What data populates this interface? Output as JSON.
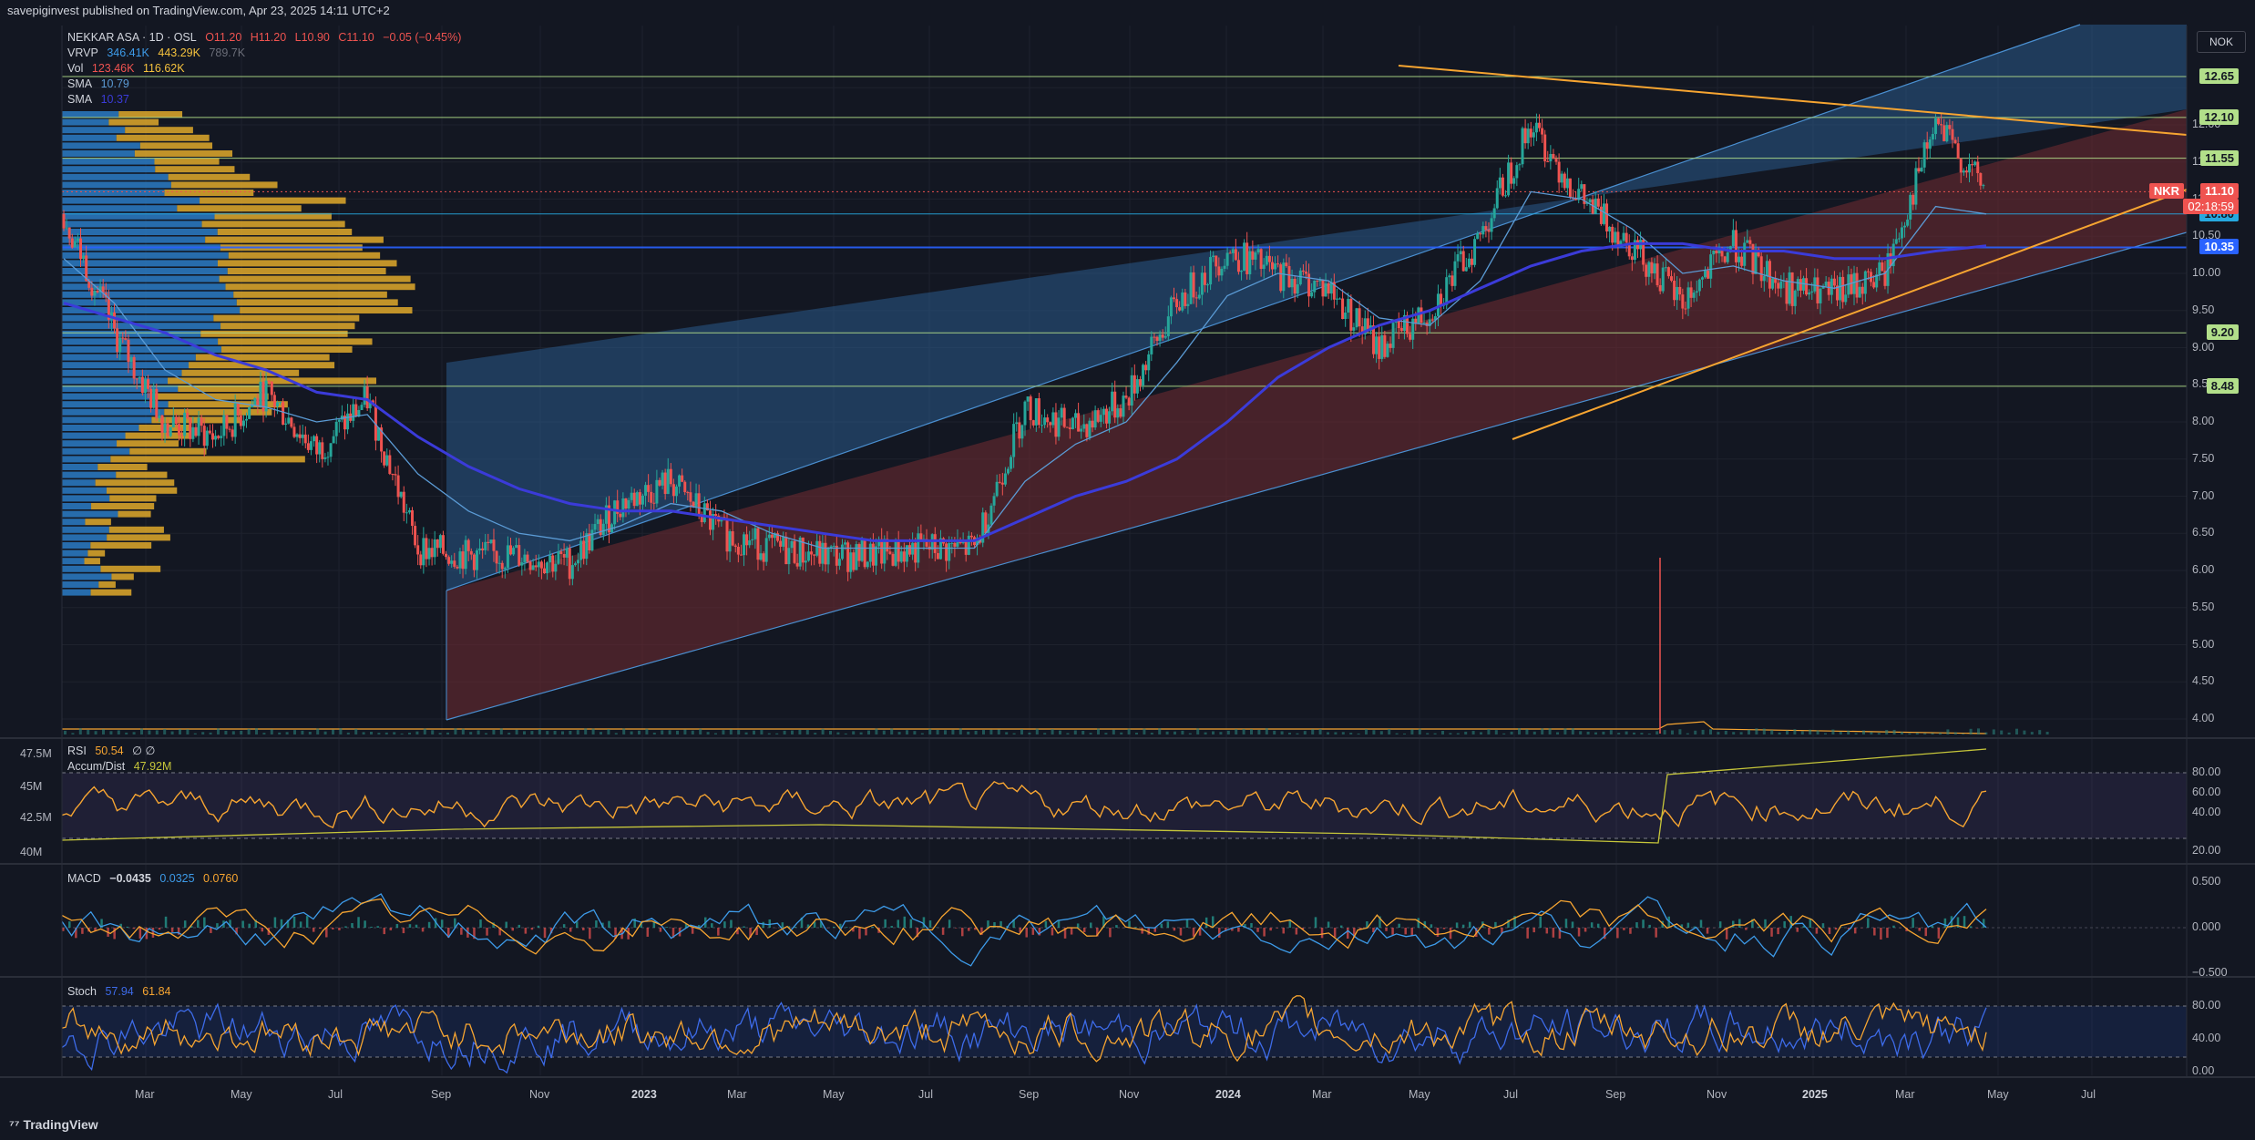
{
  "header": {
    "published": "savepiginvest published on TradingView.com, Apr 23, 2025 14:11 UTC+2"
  },
  "legend": {
    "symbol": "NEKKAR ASA · 1D · OSL",
    "ohlc": {
      "o": "O11.20",
      "h": "H11.20",
      "l": "L10.90",
      "c": "C11.10",
      "chg": "−0.05 (−0.45%)"
    },
    "vrvp": {
      "label": "VRVP",
      "v1": "346.41K",
      "v2": "443.29K",
      "v3": "789.7K"
    },
    "vol": {
      "label": "Vol",
      "v1": "123.46K",
      "v2": "116.62K"
    },
    "sma1": {
      "label": "SMA",
      "v": "10.79"
    },
    "sma2": {
      "label": "SMA",
      "v": "10.37"
    }
  },
  "currency_button": "NOK",
  "price_ticks": [
    "12.00",
    "11.50",
    "11.00",
    "10.50",
    "10.00",
    "9.50",
    "9.00",
    "8.50",
    "8.00",
    "7.50",
    "7.00",
    "6.50",
    "6.00",
    "5.50",
    "5.00",
    "4.50",
    "4.00"
  ],
  "level_labels": [
    {
      "text": "12.65",
      "value": 12.65,
      "color": "#b2df8a"
    },
    {
      "text": "12.10",
      "value": 12.1,
      "color": "#b2df8a"
    },
    {
      "text": "11.55",
      "value": 11.55,
      "color": "#b2df8a"
    },
    {
      "text": "10.80",
      "value": 10.8,
      "color": "#26a9e0"
    },
    {
      "text": "10.35",
      "value": 10.35,
      "color": "#2962ff"
    },
    {
      "text": "9.20",
      "value": 9.2,
      "color": "#b2df8a"
    },
    {
      "text": "8.48",
      "value": 8.48,
      "color": "#b2df8a"
    }
  ],
  "price_tag": {
    "symbol": "NKR",
    "price": "11.10",
    "countdown": "02:18:59",
    "value": 11.1
  },
  "rsi": {
    "label": "RSI",
    "v": "50.54",
    "extra": "∅ ∅",
    "accum_label": "Accum/Dist",
    "accum_v": "47.92M",
    "ticks": [
      "80.00",
      "60.00",
      "40.00",
      "20.00"
    ],
    "left_ticks": [
      "47.5M",
      "45M",
      "42.5M",
      "40M"
    ]
  },
  "macd": {
    "label": "MACD",
    "v1": "−0.0435",
    "v2": "0.0325",
    "v3": "0.0760",
    "ticks": [
      "0.500",
      "0.000",
      "−0.500"
    ]
  },
  "stoch": {
    "label": "Stoch",
    "v1": "57.94",
    "v2": "61.84",
    "ticks": [
      "80.00",
      "40.00",
      "0.00"
    ]
  },
  "time_labels": [
    "Mar",
    "May",
    "Jul",
    "Sep",
    "Nov",
    "2023",
    "Mar",
    "May",
    "Jul",
    "Sep",
    "Nov",
    "2024",
    "Mar",
    "May",
    "Jul",
    "Sep",
    "Nov",
    "2025",
    "Mar",
    "May",
    "Jul"
  ],
  "brand": "TradingView",
  "colors": {
    "bg": "#131722",
    "up": "#26a69a",
    "down": "#ef5350",
    "sma_fast": "#5b9bd5",
    "sma_slow": "#3b3bd9",
    "trend": "#f7a531",
    "channel_upper": "#2a5a8a",
    "channel_lower": "#6b2a30"
  },
  "chart_data": {
    "type": "line",
    "title": "",
    "xlabel": "",
    "ylabel": "",
    "ylim": [
      4.0,
      12.9
    ],
    "x": [
      "2022-02",
      "2022-03",
      "2022-04",
      "2022-05",
      "2022-06",
      "2022-07",
      "2022-08",
      "2022-09",
      "2022-10",
      "2022-11",
      "2022-12",
      "2023-01",
      "2023-02",
      "2023-03",
      "2023-04",
      "2023-05",
      "2023-06",
      "2023-07",
      "2023-08",
      "2023-09",
      "2023-10",
      "2023-11",
      "2023-12",
      "2024-01",
      "2024-02",
      "2024-03",
      "2024-04",
      "2024-05",
      "2024-06",
      "2024-07",
      "2024-08",
      "2024-09",
      "2024-10",
      "2024-11",
      "2024-12",
      "2025-01",
      "2025-02",
      "2025-03",
      "2025-04"
    ],
    "series": [
      {
        "values": [
          10.8,
          9.2,
          8.0,
          7.8,
          8.4,
          7.6,
          8.3,
          6.3,
          6.2,
          6.2,
          6.1,
          6.9,
          7.2,
          6.5,
          6.3,
          6.2,
          6.2,
          6.3,
          6.3,
          8.2,
          7.9,
          8.3,
          9.6,
          10.3,
          10.0,
          9.8,
          9.0,
          9.5,
          10.5,
          12.0,
          11.0,
          10.4,
          9.6,
          10.4,
          9.8,
          9.7,
          10.0,
          12.0,
          11.1
        ]
      },
      {
        "values": [
          10.2,
          9.6,
          8.7,
          8.3,
          8.2,
          8.0,
          8.1,
          7.3,
          6.8,
          6.5,
          6.4,
          6.6,
          6.9,
          6.8,
          6.5,
          6.3,
          6.3,
          6.3,
          6.3,
          7.2,
          7.7,
          8.0,
          8.8,
          9.7,
          10.0,
          9.9,
          9.4,
          9.3,
          9.9,
          11.1,
          11.0,
          10.6,
          10.0,
          10.1,
          9.9,
          9.8,
          10.0,
          10.9,
          10.8
        ]
      },
      {
        "values": [
          9.6,
          9.4,
          9.2,
          8.9,
          8.7,
          8.4,
          8.3,
          7.8,
          7.4,
          7.1,
          6.9,
          6.8,
          6.8,
          6.7,
          6.6,
          6.5,
          6.4,
          6.4,
          6.4,
          6.7,
          7.0,
          7.2,
          7.5,
          8.0,
          8.6,
          9.0,
          9.3,
          9.5,
          9.8,
          10.1,
          10.3,
          10.4,
          10.4,
          10.3,
          10.3,
          10.2,
          10.2,
          10.3,
          10.37
        ]
      }
    ]
  }
}
